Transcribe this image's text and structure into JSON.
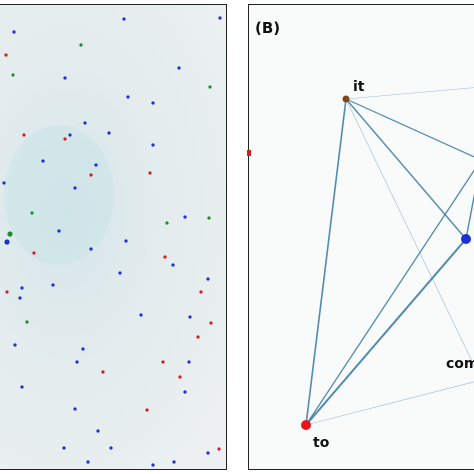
{
  "panel_b": {
    "label": "(B)",
    "nodes": [
      {
        "id": "it",
        "label": "it",
        "color": "#7a4a1e"
      },
      {
        "id": "to",
        "label": "to",
        "color": "#e8141c"
      },
      {
        "id": "blue",
        "label": "",
        "color": "#1a2fd6"
      },
      {
        "id": "com",
        "label": "com",
        "color": ""
      }
    ]
  },
  "colors": {
    "edge": "#3f7fa8",
    "dot_blue": "#1a2fd6",
    "dot_green": "#1f8a2a",
    "dot_red": "#d61c1c"
  }
}
